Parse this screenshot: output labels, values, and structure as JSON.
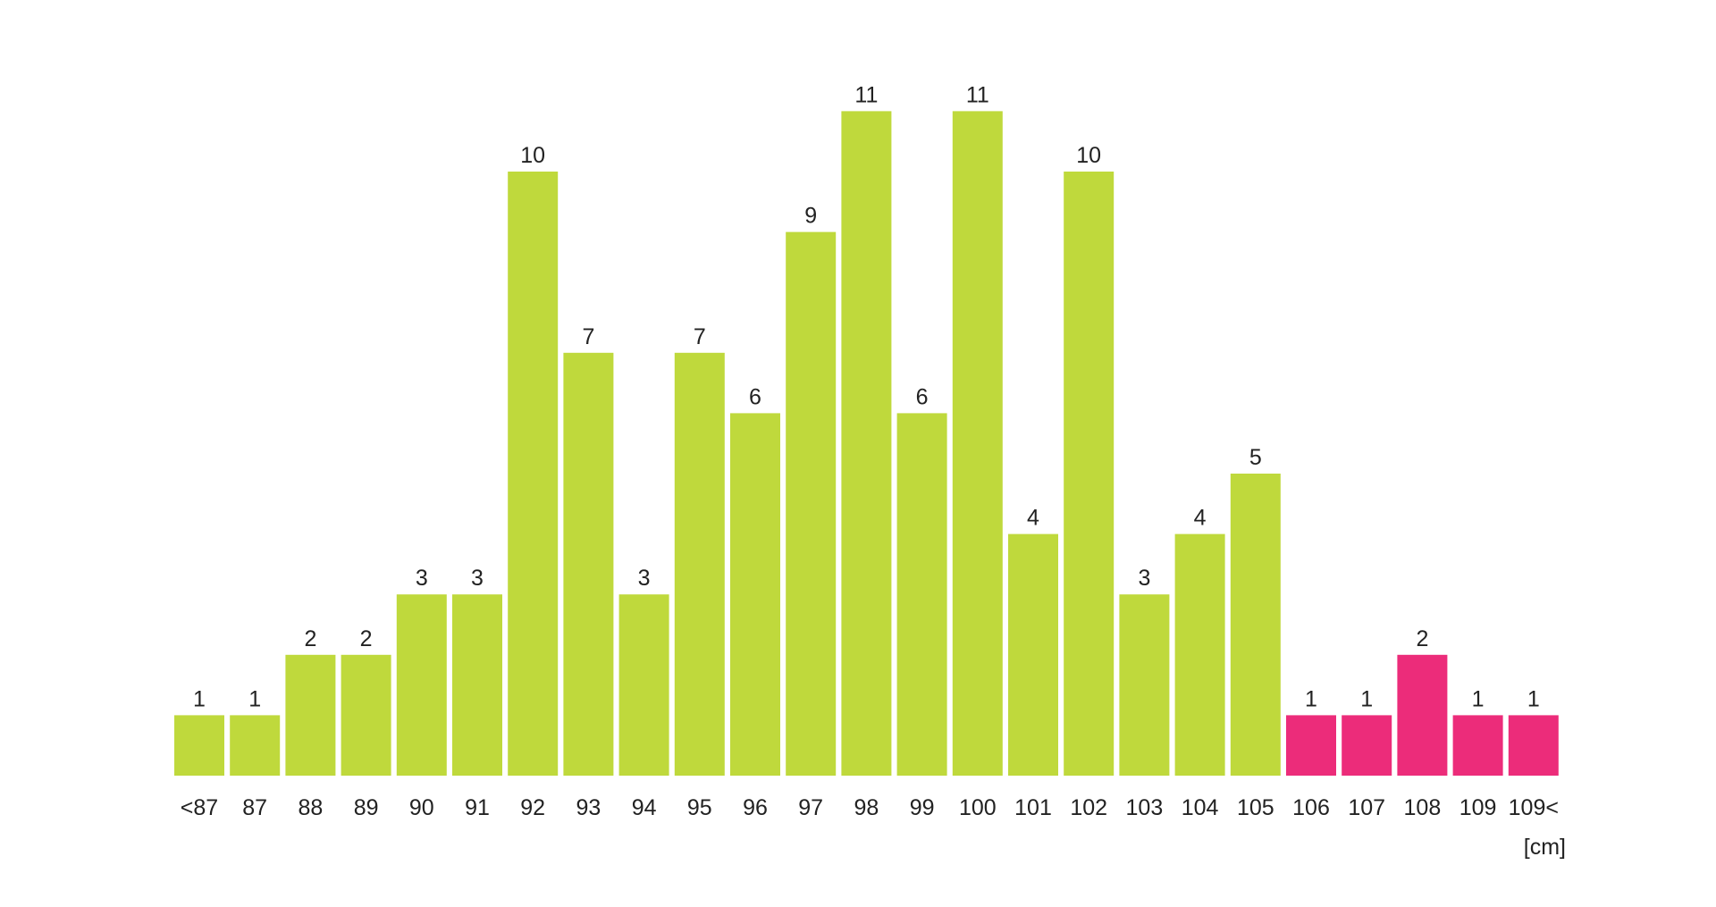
{
  "chart_data": {
    "type": "bar",
    "title": "",
    "xlabel": "",
    "ylabel": "",
    "unit_label": "[cm]",
    "categories": [
      "<87",
      "87",
      "88",
      "89",
      "90",
      "91",
      "92",
      "93",
      "94",
      "95",
      "96",
      "97",
      "98",
      "99",
      "100",
      "101",
      "102",
      "103",
      "104",
      "105",
      "106",
      "107",
      "108",
      "109",
      "109<"
    ],
    "values": [
      1,
      1,
      2,
      2,
      3,
      3,
      10,
      7,
      3,
      7,
      6,
      9,
      11,
      6,
      11,
      4,
      10,
      3,
      4,
      5,
      1,
      1,
      2,
      1,
      1
    ],
    "bar_colors": [
      "#bfd93c",
      "#bfd93c",
      "#bfd93c",
      "#bfd93c",
      "#bfd93c",
      "#bfd93c",
      "#bfd93c",
      "#bfd93c",
      "#bfd93c",
      "#bfd93c",
      "#bfd93c",
      "#bfd93c",
      "#bfd93c",
      "#bfd93c",
      "#bfd93c",
      "#bfd93c",
      "#bfd93c",
      "#bfd93c",
      "#bfd93c",
      "#bfd93c",
      "#ec2c7a",
      "#ec2c7a",
      "#ec2c7a",
      "#ec2c7a",
      "#ec2c7a"
    ],
    "colors": {
      "normal": "#bfd93c",
      "highlight": "#ec2c7a"
    },
    "ylim": [
      0,
      11
    ],
    "grid": false,
    "legend": "none",
    "show_value_labels": true
  }
}
